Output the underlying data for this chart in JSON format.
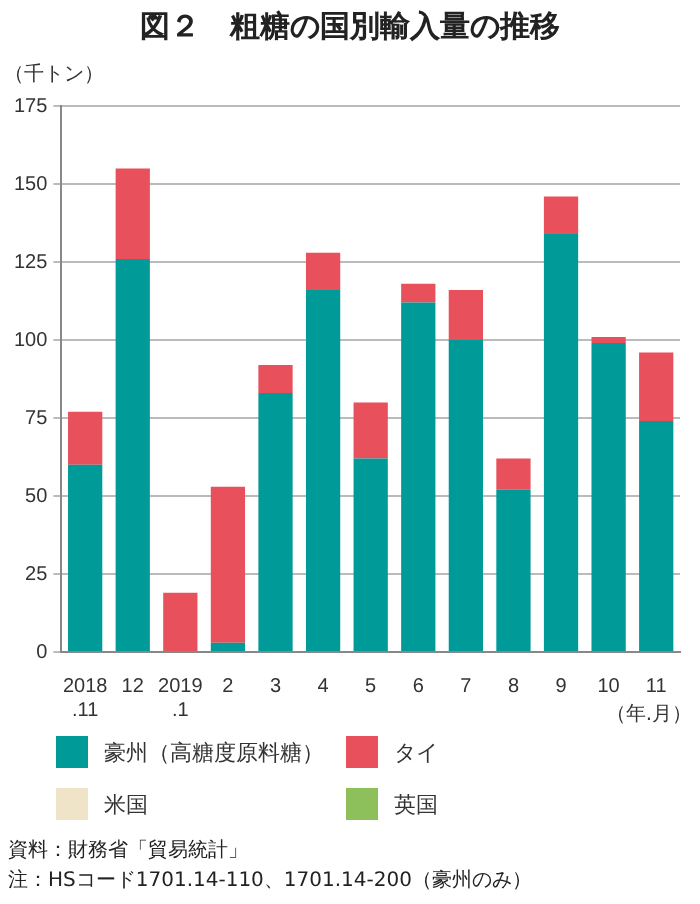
{
  "chart_data": {
    "type": "bar",
    "stacked": true,
    "title": "図２　粗糖の国別輸入量の推移",
    "ylabel": "（千トン）",
    "xlabel": "（年.月）",
    "categories": [
      "2018\n.11",
      "12",
      "2019\n.1",
      "2",
      "3",
      "4",
      "5",
      "6",
      "7",
      "8",
      "9",
      "10",
      "11"
    ],
    "series": [
      {
        "name": "豪州（高糖度原料糖）",
        "color": "#009b98",
        "values": [
          60,
          126,
          0,
          3,
          83,
          116,
          62,
          112,
          100,
          52,
          134,
          99,
          74
        ]
      },
      {
        "name": "タイ",
        "color": "#e8505b",
        "values": [
          17,
          29,
          19,
          50,
          9,
          12,
          18,
          6,
          16,
          10,
          12,
          2,
          22
        ]
      },
      {
        "name": "米国",
        "color": "#efe3c8",
        "values": [
          0,
          0,
          0,
          0,
          0,
          0,
          0,
          0,
          0,
          0,
          0,
          0,
          0
        ]
      },
      {
        "name": "英国",
        "color": "#8dc05a",
        "values": [
          0,
          0,
          0,
          0,
          0,
          0,
          0,
          0,
          0,
          0,
          0,
          0,
          0
        ]
      }
    ],
    "ylim": [
      0,
      175
    ],
    "yticks": [
      0,
      25,
      50,
      75,
      100,
      125,
      150,
      175
    ],
    "grid": "y",
    "legend": "bottom",
    "annotations": [
      "資料：財務省「貿易統計」",
      "注：HSコード1701.14-110、1701.14-200（豪州のみ）"
    ]
  }
}
